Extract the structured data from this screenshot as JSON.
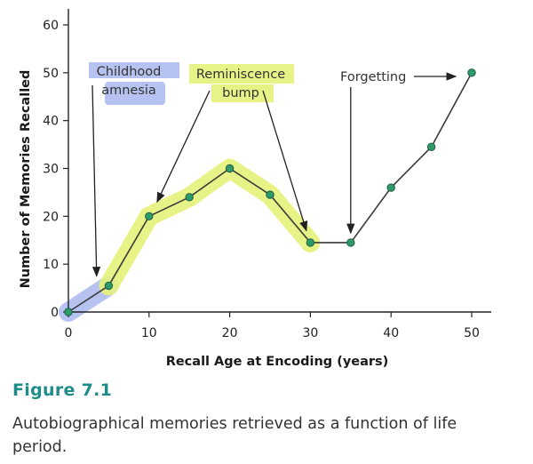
{
  "caption": {
    "figure_label": "Figure 7.1",
    "text": "Autobiographical memories retrieved as a function of life period."
  },
  "colors": {
    "point": "#2e9a6a",
    "line": "#3a3a3a",
    "highlight_blue": "#a9b8ee",
    "highlight_yellow": "#e6f27a"
  },
  "chart_data": {
    "type": "line",
    "title": "",
    "xlabel": "Recall Age at Encoding (years)",
    "ylabel": "Number of Memories Recalled",
    "xlim": [
      0,
      50
    ],
    "ylim": [
      0,
      60
    ],
    "xticks": [
      0,
      10,
      20,
      30,
      40,
      50
    ],
    "yticks": [
      0,
      10,
      20,
      30,
      40,
      50,
      60
    ],
    "grid": false,
    "series": [
      {
        "x": [
          0,
          5,
          10,
          15,
          20,
          25,
          30,
          35,
          40,
          45,
          50
        ],
        "values": [
          0,
          5.5,
          20,
          24,
          30,
          24.5,
          14.5,
          14.5,
          26,
          34.5,
          50
        ]
      }
    ],
    "annotations": [
      {
        "lines": [
          "Childhood",
          "amnesia"
        ],
        "target": [
          3.5,
          7.5
        ],
        "highlight": "blue"
      },
      {
        "lines": [
          "Reminiscence",
          "bump"
        ],
        "targets": [
          [
            11,
            23
          ],
          [
            29.5,
            17
          ]
        ],
        "highlight": "yellow"
      },
      {
        "lines": [
          "Forgetting"
        ],
        "target": [
          35,
          16.5
        ],
        "highlight": "none"
      }
    ]
  }
}
